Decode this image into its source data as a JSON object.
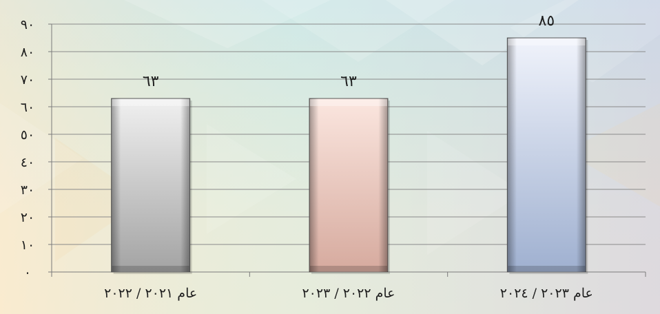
{
  "chart_data": {
    "type": "bar",
    "categories": [
      "عام ٢٠٢١ / ٢٠٢٢",
      "عام ٢٠٢٢ / ٢٠٢٣",
      "عام ٢٠٢٣ / ٢٠٢٤"
    ],
    "values": [
      63,
      63,
      85
    ],
    "value_labels": [
      "٦٣",
      "٦٣",
      "٨٥"
    ],
    "ylim": [
      0,
      90
    ],
    "yticks": [
      0,
      10,
      20,
      30,
      40,
      50,
      60,
      70,
      80,
      90
    ],
    "ytick_labels": [
      "٠",
      "١٠",
      "٢٠",
      "٣٠",
      "٤٠",
      "٥٠",
      "٦٠",
      "٧٠",
      "٨٠",
      "٩٠"
    ],
    "grid": true,
    "legend": "none",
    "title": "",
    "xlabel": "",
    "ylabel": "",
    "colors": {
      "bar_fills": [
        [
          "#f0f0f0",
          "#a3a3a3"
        ],
        [
          "#fbe6df",
          "#d6aa9e"
        ],
        [
          "#f0f3fb",
          "#9fb0d0"
        ]
      ],
      "bar_edge": "#5a5a5a",
      "grid": "#8a8a8a",
      "axis": "#7a7a7a",
      "text": "#1e1e1e"
    }
  }
}
